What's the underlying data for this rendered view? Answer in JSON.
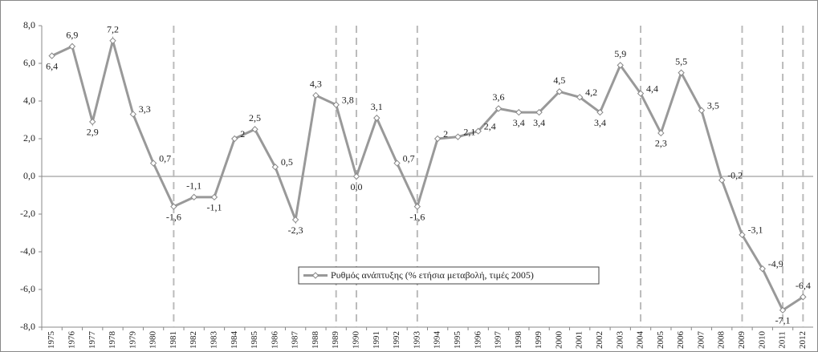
{
  "chart_data": {
    "type": "line",
    "categories": [
      "1975",
      "1976",
      "1977",
      "1978",
      "1979",
      "1980",
      "1981",
      "1982",
      "1983",
      "1984",
      "1985",
      "1986",
      "1987",
      "1988",
      "1989",
      "1990",
      "1991",
      "1992",
      "1993",
      "1994",
      "1995",
      "1996",
      "1997",
      "1998",
      "1999",
      "2000",
      "2001",
      "2002",
      "2003",
      "2004",
      "2005",
      "2006",
      "2007",
      "2008",
      "2009",
      "2010",
      "2011",
      "2012"
    ],
    "series": [
      {
        "name": "Ρυθμός ανάπτυξης (% ετήσια μεταβολή, τιμές 2005)",
        "color": "#999999",
        "values": [
          6.4,
          6.9,
          2.9,
          7.2,
          3.3,
          0.7,
          -1.6,
          -1.1,
          -1.1,
          2,
          2.5,
          0.5,
          -2.3,
          4.3,
          3.8,
          0.0,
          3.1,
          0.7,
          -1.6,
          2,
          2.1,
          2.4,
          3.6,
          3.4,
          3.4,
          4.5,
          4.2,
          3.4,
          5.9,
          4.4,
          2.3,
          5.5,
          3.5,
          -0.2,
          -3.1,
          -4.9,
          -7.1,
          -6.4
        ],
        "value_labels": [
          "6,4",
          "6,9",
          "2,9",
          "7,2",
          "3,3",
          "0,7",
          "-1,6",
          "-1,1",
          "-1,1",
          "2",
          "2,5",
          "0,5",
          "-2,3",
          "4,3",
          "3,8",
          "0,0",
          "3,1",
          "0,7",
          "-1,6",
          "2",
          "2,1",
          "2,4",
          "3,6",
          "3,4",
          "3,4",
          "4,5",
          "4,2",
          "3,4",
          "5,9",
          "4,4",
          "2,3",
          "5,5",
          "3,5",
          "-0,2",
          "-3,1",
          "-4,9",
          "-7,1",
          "-6,4"
        ]
      }
    ],
    "marked_years": [
      "1981",
      "1989",
      "1990",
      "1993",
      "2004",
      "2009",
      "2011",
      "2012"
    ],
    "ylim": [
      -8,
      8
    ],
    "yticks": [
      {
        "value": -8,
        "label": "-8,0"
      },
      {
        "value": -6,
        "label": "-6,0"
      },
      {
        "value": -4,
        "label": "-4,0"
      },
      {
        "value": -2,
        "label": "-2,0"
      },
      {
        "value": 0,
        "label": "0,0"
      },
      {
        "value": 2,
        "label": "2,0"
      },
      {
        "value": 4,
        "label": "4,0"
      },
      {
        "value": 6,
        "label": "6,0"
      },
      {
        "value": 8,
        "label": "8,0"
      }
    ],
    "legend": "center"
  }
}
